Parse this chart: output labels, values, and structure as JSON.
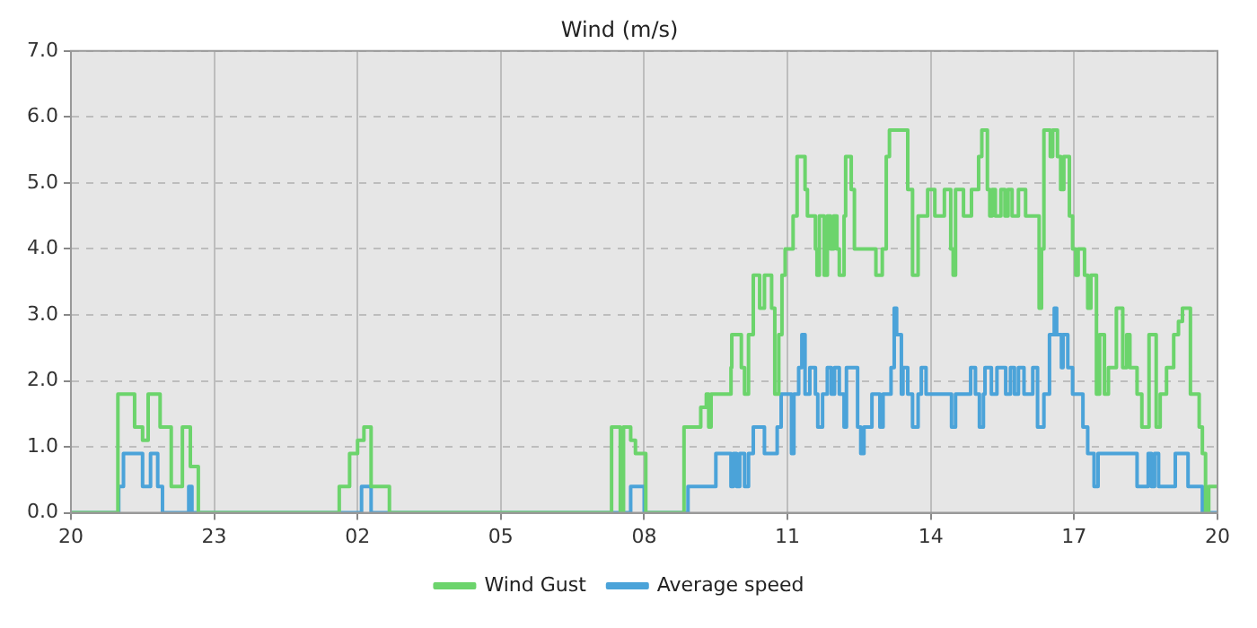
{
  "chart_data": {
    "type": "step",
    "title": "Wind (m/s)",
    "xlim": [
      "--01-01T20:00",
      "--01-02T20:00"
    ],
    "xticks": [
      {
        "value": "--01-01T20:00",
        "label": "20"
      },
      {
        "value": "--01-01T23:00",
        "label": "23"
      },
      {
        "value": "--01-02T02:00",
        "label": "02"
      },
      {
        "value": "--01-02T05:00",
        "label": "05"
      },
      {
        "value": "--01-02T08:00",
        "label": "08"
      },
      {
        "value": "--01-02T11:00",
        "label": "11"
      },
      {
        "value": "--01-02T14:00",
        "label": "14"
      },
      {
        "value": "--01-02T17:00",
        "label": "17"
      },
      {
        "value": "--01-02T20:00",
        "label": "20"
      }
    ],
    "ylim": [
      0,
      7
    ],
    "yticks": [
      {
        "value": 0,
        "label": "0.0"
      },
      {
        "value": 1,
        "label": "1.0"
      },
      {
        "value": 2,
        "label": "2.0"
      },
      {
        "value": 3,
        "label": "3.0"
      },
      {
        "value": 4,
        "label": "4.0"
      },
      {
        "value": 5,
        "label": "5.0"
      },
      {
        "value": 6,
        "label": "6.0"
      },
      {
        "value": 7,
        "label": "7.0"
      }
    ],
    "grid": true,
    "legend": "bottom",
    "line_style": "solid",
    "marker": "none",
    "series": [
      {
        "name": "Wind Gust",
        "color": "#6cd46c",
        "x": [
          "--01-01T20:00",
          "--01-01T20:59",
          "--01-01T21:20",
          "--01-01T21:30",
          "--01-01T21:37",
          "--01-01T21:52",
          "--01-01T22:06",
          "--01-01T22:20",
          "--01-01T22:30",
          "--01-01T22:40",
          "--01-02T01:37",
          "--01-02T01:50",
          "--01-02T02:00",
          "--01-02T02:08",
          "--01-02T02:17",
          "--01-02T02:40",
          "--01-02T07:19",
          "--01-02T07:30",
          "--01-02T07:34",
          "--01-02T07:43",
          "--01-02T07:49",
          "--01-02T08:02",
          "--01-02T08:50",
          "--01-02T09:11",
          "--01-02T09:18",
          "--01-02T09:21",
          "--01-02T09:24",
          "--01-02T09:49",
          "--01-02T09:50",
          "--01-02T10:02",
          "--01-02T10:06",
          "--01-02T10:11",
          "--01-02T10:17",
          "--01-02T10:25",
          "--01-02T10:31",
          "--01-02T10:40",
          "--01-02T10:44",
          "--01-02T10:49",
          "--01-02T10:53",
          "--01-02T10:57",
          "--01-02T11:07",
          "--01-02T11:12",
          "--01-02T11:22",
          "--01-02T11:25",
          "--01-02T11:35",
          "--01-02T11:37",
          "--01-02T11:40",
          "--01-02T11:46",
          "--01-02T11:50",
          "--01-02T11:54",
          "--01-02T11:58",
          "--01-02T12:02",
          "--01-02T12:05",
          "--01-02T12:11",
          "--01-02T12:13",
          "--01-02T12:20",
          "--01-02T12:24",
          "--01-02T12:51",
          "--01-02T12:59",
          "--01-02T13:04",
          "--01-02T13:08",
          "--01-02T13:31",
          "--01-02T13:37",
          "--01-02T13:44",
          "--01-02T13:56",
          "--01-02T14:05",
          "--01-02T14:17",
          "--01-02T14:25",
          "--01-02T14:28",
          "--01-02T14:31",
          "--01-02T14:41",
          "--01-02T14:51",
          "--01-02T15:00",
          "--01-02T15:04",
          "--01-02T15:11",
          "--01-02T15:14",
          "--01-02T15:17",
          "--01-02T15:21",
          "--01-02T15:28",
          "--01-02T15:33",
          "--01-02T15:37",
          "--01-02T15:42",
          "--01-02T15:50",
          "--01-02T15:59",
          "--01-02T16:16",
          "--01-02T16:19",
          "--01-02T16:22",
          "--01-02T16:30",
          "--01-02T16:33",
          "--01-02T16:39",
          "--01-02T16:43",
          "--01-02T16:47",
          "--01-02T16:54",
          "--01-02T16:58",
          "--01-02T17:02",
          "--01-02T17:05",
          "--01-02T17:13",
          "--01-02T17:17",
          "--01-02T17:21",
          "--01-02T17:28",
          "--01-02T17:32",
          "--01-02T17:38",
          "--01-02T17:43",
          "--01-02T17:53",
          "--01-02T18:01",
          "--01-02T18:06",
          "--01-02T18:10",
          "--01-02T18:19",
          "--01-02T18:25",
          "--01-02T18:34",
          "--01-02T18:43",
          "--01-02T18:48",
          "--01-02T18:56",
          "--01-02T19:05",
          "--01-02T19:11",
          "--01-02T19:16",
          "--01-02T19:26",
          "--01-02T19:37",
          "--01-02T19:41",
          "--01-02T19:45",
          "--01-02T19:49",
          "--01-02T20:00"
        ],
        "values": [
          0,
          1.8,
          1.3,
          1.1,
          1.8,
          1.3,
          0.4,
          1.3,
          0.7,
          0,
          0.4,
          0.9,
          1.1,
          1.3,
          0.4,
          0,
          1.3,
          0,
          1.3,
          1.1,
          0.9,
          0,
          1.3,
          1.6,
          1.8,
          1.3,
          1.8,
          2.2,
          2.7,
          2.2,
          1.8,
          2.7,
          3.6,
          3.1,
          3.6,
          3.1,
          1.8,
          2.7,
          3.6,
          4.0,
          4.5,
          5.4,
          4.9,
          4.5,
          4.0,
          3.6,
          4.5,
          3.6,
          4.5,
          4.0,
          4.5,
          4.0,
          3.6,
          4.5,
          5.4,
          4.9,
          4.0,
          3.6,
          4.0,
          5.4,
          5.8,
          4.9,
          3.6,
          4.5,
          4.9,
          4.5,
          4.9,
          4.0,
          3.6,
          4.9,
          4.5,
          4.9,
          5.4,
          5.8,
          4.9,
          4.5,
          4.9,
          4.5,
          4.9,
          4.5,
          4.9,
          4.5,
          4.9,
          4.5,
          3.1,
          4.0,
          5.8,
          5.4,
          5.8,
          5.4,
          4.9,
          5.4,
          4.5,
          4.0,
          3.6,
          4.0,
          3.6,
          3.1,
          3.6,
          1.8,
          2.7,
          1.8,
          2.2,
          3.1,
          2.2,
          2.7,
          2.2,
          1.8,
          1.3,
          2.7,
          1.3,
          1.8,
          2.2,
          2.7,
          2.9,
          3.1,
          1.8,
          1.3,
          0.9,
          0,
          0.4,
          0.4
        ]
      },
      {
        "name": "Average speed",
        "color": "#4ba3d9",
        "x": [
          "--01-01T20:00",
          "--01-01T21:00",
          "--01-01T21:06",
          "--01-01T21:30",
          "--01-01T21:40",
          "--01-01T21:49",
          "--01-01T21:55",
          "--01-01T22:28",
          "--01-01T22:32",
          "--01-02T02:05",
          "--01-02T02:17",
          "--01-02T07:43",
          "--01-02T08:00",
          "--01-02T08:55",
          "--01-02T09:30",
          "--01-02T09:49",
          "--01-02T09:52",
          "--01-02T09:56",
          "--01-02T10:00",
          "--01-02T10:06",
          "--01-02T10:11",
          "--01-02T10:17",
          "--01-02T10:31",
          "--01-02T10:47",
          "--01-02T10:52",
          "--01-02T11:05",
          "--01-02T11:08",
          "--01-02T11:14",
          "--01-02T11:18",
          "--01-02T11:22",
          "--01-02T11:28",
          "--01-02T11:35",
          "--01-02T11:38",
          "--01-02T11:44",
          "--01-02T11:50",
          "--01-02T11:55",
          "--01-02T11:59",
          "--01-02T12:05",
          "--01-02T12:11",
          "--01-02T12:14",
          "--01-02T12:28",
          "--01-02T12:32",
          "--01-02T12:36",
          "--01-02T12:46",
          "--01-02T12:56",
          "--01-02T13:00",
          "--01-02T13:10",
          "--01-02T13:14",
          "--01-02T13:17",
          "--01-02T13:23",
          "--01-02T13:25",
          "--01-02T13:31",
          "--01-02T13:37",
          "--01-02T13:44",
          "--01-02T13:48",
          "--01-02T13:54",
          "--01-02T14:26",
          "--01-02T14:31",
          "--01-02T14:50",
          "--01-02T14:56",
          "--01-02T15:01",
          "--01-02T15:06",
          "--01-02T15:08",
          "--01-02T15:16",
          "--01-02T15:23",
          "--01-02T15:34",
          "--01-02T15:40",
          "--01-02T15:45",
          "--01-02T15:50",
          "--01-02T15:57",
          "--01-02T16:08",
          "--01-02T16:14",
          "--01-02T16:22",
          "--01-02T16:29",
          "--01-02T16:35",
          "--01-02T16:38",
          "--01-02T16:44",
          "--01-02T16:46",
          "--01-02T16:52",
          "--01-02T16:58",
          "--01-02T17:11",
          "--01-02T17:17",
          "--01-02T17:25",
          "--01-02T17:30",
          "--01-02T18:19",
          "--01-02T18:33",
          "--01-02T18:37",
          "--01-02T18:41",
          "--01-02T18:46",
          "--01-02T19:07",
          "--01-02T19:23",
          "--01-02T19:41",
          "--01-02T20:00"
        ],
        "values": [
          0,
          0.4,
          0.9,
          0.4,
          0.9,
          0.4,
          0,
          0.4,
          0,
          0.4,
          0,
          0.4,
          0,
          0.4,
          0.9,
          0.4,
          0.9,
          0.4,
          0.9,
          0.4,
          0.9,
          1.3,
          0.9,
          1.3,
          1.8,
          0.9,
          1.8,
          2.2,
          2.7,
          1.8,
          2.2,
          1.8,
          1.3,
          1.8,
          2.2,
          1.8,
          2.2,
          1.8,
          1.3,
          2.2,
          1.3,
          0.9,
          1.3,
          1.8,
          1.3,
          1.8,
          2.2,
          3.1,
          2.7,
          1.8,
          2.2,
          1.8,
          1.3,
          1.8,
          2.2,
          1.8,
          1.3,
          1.8,
          2.2,
          1.8,
          1.3,
          1.8,
          2.2,
          1.8,
          2.2,
          1.8,
          2.2,
          1.8,
          2.2,
          1.8,
          2.2,
          1.3,
          1.8,
          2.7,
          3.1,
          2.7,
          2.2,
          2.7,
          2.2,
          1.8,
          1.3,
          0.9,
          0.4,
          0.9,
          0.4,
          0.9,
          0.4,
          0.9,
          0.4,
          0.9,
          0.4,
          0,
          0
        ]
      }
    ]
  }
}
